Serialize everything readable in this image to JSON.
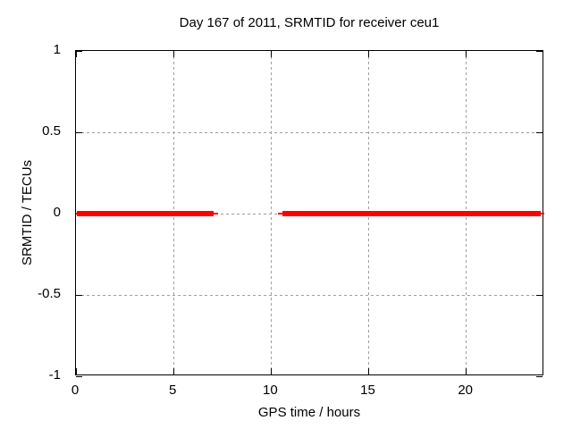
{
  "window": {
    "background": "#ffffff"
  },
  "chart_data": {
    "type": "line",
    "title": "Day 167 of 2011, SRMTID for receiver ceu1",
    "xlabel": "GPS time / hours",
    "ylabel": "SRMTID / TECUs",
    "xlim": [
      0,
      24
    ],
    "ylim": [
      -1,
      1
    ],
    "xticks": [
      {
        "value": 0,
        "label": "0"
      },
      {
        "value": 5,
        "label": "5"
      },
      {
        "value": 10,
        "label": "10"
      },
      {
        "value": 15,
        "label": "15"
      },
      {
        "value": 20,
        "label": "20"
      }
    ],
    "yticks": [
      {
        "value": 1,
        "label": "1"
      },
      {
        "value": 0.5,
        "label": "0.5"
      },
      {
        "value": 0,
        "label": "0"
      },
      {
        "value": -0.5,
        "label": "-0.5"
      },
      {
        "value": -1,
        "label": "-1"
      }
    ],
    "grid": true,
    "legend_position": "none",
    "series": [
      {
        "name": "SRMTID",
        "color": "#ff0000",
        "y_value": 0,
        "segments": [
          {
            "x_start": 0,
            "x_end": 7.28,
            "y": 0,
            "core_start": 0.05,
            "core_end": 7.05
          },
          {
            "x_start": 10.37,
            "x_end": 24,
            "y": 0,
            "core_start": 10.56,
            "core_end": 23.82
          }
        ]
      }
    ],
    "colors": {
      "grid": "#9e9e9e",
      "axis": "#000000",
      "text": "#000000",
      "line": "#ff0000"
    }
  }
}
